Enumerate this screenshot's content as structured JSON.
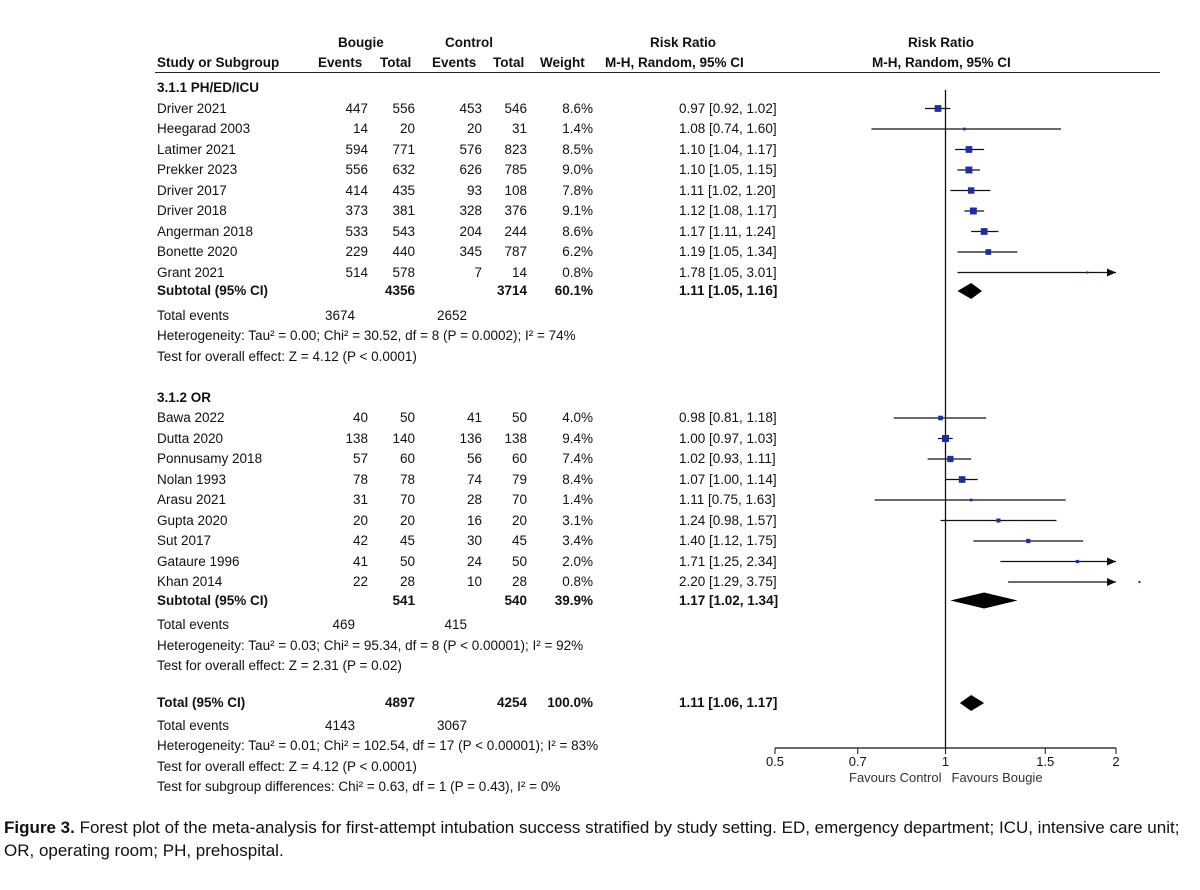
{
  "header": {
    "group1": "Bougie",
    "group2": "Control",
    "rr_title": "Risk Ratio",
    "study": "Study or Subgroup",
    "events": "Events",
    "total": "Total",
    "weight": "Weight",
    "method": "M-H, Random, 95% CI",
    "plot_title": "Risk Ratio",
    "plot_method": "M-H, Random, 95% CI"
  },
  "subgroups": [
    {
      "title": "3.1.1 PH/ED/ICU",
      "studies": [
        {
          "name": "Driver 2021",
          "e1": "447",
          "n1": "556",
          "e2": "453",
          "n2": "546",
          "w": "8.6%",
          "ci": "0.97 [0.92, 1.02]"
        },
        {
          "name": "Heegarad 2003",
          "e1": "14",
          "n1": "20",
          "e2": "20",
          "n2": "31",
          "w": "1.4%",
          "ci": "1.08 [0.74, 1.60]"
        },
        {
          "name": "Latimer 2021",
          "e1": "594",
          "n1": "771",
          "e2": "576",
          "n2": "823",
          "w": "8.5%",
          "ci": "1.10 [1.04, 1.17]"
        },
        {
          "name": "Prekker 2023",
          "e1": "556",
          "n1": "632",
          "e2": "626",
          "n2": "785",
          "w": "9.0%",
          "ci": "1.10 [1.05, 1.15]"
        },
        {
          "name": "Driver 2017",
          "e1": "414",
          "n1": "435",
          "e2": "93",
          "n2": "108",
          "w": "7.8%",
          "ci": "1.11 [1.02, 1.20]"
        },
        {
          "name": "Driver 2018",
          "e1": "373",
          "n1": "381",
          "e2": "328",
          "n2": "376",
          "w": "9.1%",
          "ci": "1.12 [1.08, 1.17]"
        },
        {
          "name": "Angerman 2018",
          "e1": "533",
          "n1": "543",
          "e2": "204",
          "n2": "244",
          "w": "8.6%",
          "ci": "1.17 [1.11, 1.24]"
        },
        {
          "name": "Bonette 2020",
          "e1": "229",
          "n1": "440",
          "e2": "345",
          "n2": "787",
          "w": "6.2%",
          "ci": "1.19 [1.05, 1.34]"
        },
        {
          "name": "Grant 2021",
          "e1": "514",
          "n1": "578",
          "e2": "7",
          "n2": "14",
          "w": "0.8%",
          "ci": "1.78 [1.05, 3.01]"
        }
      ],
      "subtotal": {
        "label": "Subtotal (95% CI)",
        "n1": "4356",
        "n2": "3714",
        "w": "60.1%",
        "ci": "1.11 [1.05, 1.16]"
      },
      "total_events": {
        "label": "Total events",
        "e1": "3674",
        "e2": "2652"
      },
      "heterogeneity": "Heterogeneity: Tau² = 0.00; Chi² = 30.52, df = 8 (P = 0.0002); I² = 74%",
      "overall": "Test for overall effect: Z = 4.12 (P < 0.0001)"
    },
    {
      "title": "3.1.2 OR",
      "studies": [
        {
          "name": "Bawa 2022",
          "e1": "40",
          "n1": "50",
          "e2": "41",
          "n2": "50",
          "w": "4.0%",
          "ci": "0.98 [0.81, 1.18]"
        },
        {
          "name": "Dutta 2020",
          "e1": "138",
          "n1": "140",
          "e2": "136",
          "n2": "138",
          "w": "9.4%",
          "ci": "1.00 [0.97, 1.03]"
        },
        {
          "name": "Ponnusamy 2018",
          "e1": "57",
          "n1": "60",
          "e2": "56",
          "n2": "60",
          "w": "7.4%",
          "ci": "1.02 [0.93, 1.11]"
        },
        {
          "name": "Nolan 1993",
          "e1": "78",
          "n1": "78",
          "e2": "74",
          "n2": "79",
          "w": "8.4%",
          "ci": "1.07 [1.00, 1.14]"
        },
        {
          "name": "Arasu 2021",
          "e1": "31",
          "n1": "70",
          "e2": "28",
          "n2": "70",
          "w": "1.4%",
          "ci": "1.11 [0.75, 1.63]"
        },
        {
          "name": "Gupta 2020",
          "e1": "20",
          "n1": "20",
          "e2": "16",
          "n2": "20",
          "w": "3.1%",
          "ci": "1.24 [0.98, 1.57]"
        },
        {
          "name": "Sut 2017",
          "e1": "42",
          "n1": "45",
          "e2": "30",
          "n2": "45",
          "w": "3.4%",
          "ci": "1.40 [1.12, 1.75]"
        },
        {
          "name": "Gataure 1996",
          "e1": "41",
          "n1": "50",
          "e2": "24",
          "n2": "50",
          "w": "2.0%",
          "ci": "1.71 [1.25, 2.34]"
        },
        {
          "name": "Khan 2014",
          "e1": "22",
          "n1": "28",
          "e2": "10",
          "n2": "28",
          "w": "0.8%",
          "ci": "2.20 [1.29, 3.75]"
        }
      ],
      "subtotal": {
        "label": "Subtotal (95% CI)",
        "n1": "541",
        "n2": "540",
        "w": "39.9%",
        "ci": "1.17 [1.02, 1.34]"
      },
      "total_events": {
        "label": "Total events",
        "e1": "469",
        "e2": "415"
      },
      "heterogeneity": "Heterogeneity: Tau² = 0.03; Chi² = 95.34, df = 8 (P < 0.00001); I² = 92%",
      "overall": "Test for overall effect: Z = 2.31 (P = 0.02)"
    }
  ],
  "total": {
    "label": "Total (95% CI)",
    "n1": "4897",
    "n2": "4254",
    "w": "100.0%",
    "ci": "1.11 [1.06, 1.17]",
    "events_label": "Total events",
    "e1": "4143",
    "e2": "3067",
    "heterogeneity": "Heterogeneity: Tau² = 0.01; Chi² = 102.54, df = 17 (P < 0.00001); I² = 83%",
    "overall": "Test for overall effect: Z = 4.12 (P < 0.0001)",
    "subgroup_diff": "Test for subgroup differences: Chi² = 0.63, df = 1 (P = 0.43), I² = 0%"
  },
  "axis": {
    "ticks": [
      0.5,
      0.7,
      1,
      1.5,
      2
    ],
    "tick_labels": [
      "0.5",
      "0.7",
      "1",
      "1.5",
      "2"
    ],
    "left_label": "Favours Control",
    "right_label": "Favours Bougie"
  },
  "caption": {
    "figure": "Figure 3.",
    "text": "Forest plot of the meta-analysis for first-attempt intubation success stratified by study setting. ED, emergency department; ICU, intensive care unit; OR, operating room; PH, prehospital."
  },
  "chart_data": {
    "type": "forest",
    "scale": "log",
    "xlim": [
      0.5,
      2
    ],
    "reference_line": 1,
    "studies": [
      {
        "name": "Driver 2021",
        "rr": 0.97,
        "lo": 0.92,
        "hi": 1.02,
        "weight": 8.6
      },
      {
        "name": "Heegarad 2003",
        "rr": 1.08,
        "lo": 0.74,
        "hi": 1.6,
        "weight": 1.4
      },
      {
        "name": "Latimer 2021",
        "rr": 1.1,
        "lo": 1.04,
        "hi": 1.17,
        "weight": 8.5
      },
      {
        "name": "Prekker 2023",
        "rr": 1.1,
        "lo": 1.05,
        "hi": 1.15,
        "weight": 9.0
      },
      {
        "name": "Driver 2017",
        "rr": 1.11,
        "lo": 1.02,
        "hi": 1.2,
        "weight": 7.8
      },
      {
        "name": "Driver 2018",
        "rr": 1.12,
        "lo": 1.08,
        "hi": 1.17,
        "weight": 9.1
      },
      {
        "name": "Angerman 2018",
        "rr": 1.17,
        "lo": 1.11,
        "hi": 1.24,
        "weight": 8.6
      },
      {
        "name": "Bonette 2020",
        "rr": 1.19,
        "lo": 1.05,
        "hi": 1.34,
        "weight": 6.2
      },
      {
        "name": "Grant 2021",
        "rr": 1.78,
        "lo": 1.05,
        "hi": 3.01,
        "weight": 0.8
      },
      {
        "name": "Subtotal (95% CI)",
        "rr": 1.11,
        "lo": 1.05,
        "hi": 1.16,
        "diamond": true
      },
      {
        "name": "Bawa 2022",
        "rr": 0.98,
        "lo": 0.81,
        "hi": 1.18,
        "weight": 4.0
      },
      {
        "name": "Dutta 2020",
        "rr": 1.0,
        "lo": 0.97,
        "hi": 1.03,
        "weight": 9.4
      },
      {
        "name": "Ponnusamy 2018",
        "rr": 1.02,
        "lo": 0.93,
        "hi": 1.11,
        "weight": 7.4
      },
      {
        "name": "Nolan 1993",
        "rr": 1.07,
        "lo": 1.0,
        "hi": 1.14,
        "weight": 8.4
      },
      {
        "name": "Arasu 2021",
        "rr": 1.11,
        "lo": 0.75,
        "hi": 1.63,
        "weight": 1.4
      },
      {
        "name": "Gupta 2020",
        "rr": 1.24,
        "lo": 0.98,
        "hi": 1.57,
        "weight": 3.1
      },
      {
        "name": "Sut 2017",
        "rr": 1.4,
        "lo": 1.12,
        "hi": 1.75,
        "weight": 3.4
      },
      {
        "name": "Gataure 1996",
        "rr": 1.71,
        "lo": 1.25,
        "hi": 2.34,
        "weight": 2.0
      },
      {
        "name": "Khan 2014",
        "rr": 2.2,
        "lo": 1.29,
        "hi": 3.75,
        "weight": 0.8
      },
      {
        "name": "Subtotal (95% CI)",
        "rr": 1.17,
        "lo": 1.02,
        "hi": 1.34,
        "diamond": true
      },
      {
        "name": "Total (95% CI)",
        "rr": 1.11,
        "lo": 1.06,
        "hi": 1.17,
        "diamond": true
      }
    ]
  }
}
